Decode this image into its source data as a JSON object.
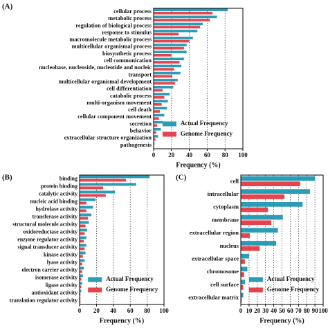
{
  "chart_data": [
    {
      "type": "bar",
      "orientation": "horizontal",
      "panel_label": "(A)",
      "x_label": "Frequency (%)",
      "xlim": [
        0,
        100
      ],
      "xticks": [
        0,
        20,
        40,
        60,
        80,
        100
      ],
      "grid": true,
      "legend": "lower right",
      "categories": [
        "cellular process",
        "metabolic process",
        "regulation of biological process",
        "response to stimulus",
        "macromolecule metabolic process",
        "multicellular organismal process",
        "biosynthetic process",
        "cell communication",
        "nucleobase, nucleoside, nucleotide and nucleic",
        "transport",
        "multicellular organismal development",
        "cell differentiation",
        "catabolic process",
        "multi-organism movement",
        "cell death",
        "cellular component movement",
        "secretion",
        "behavior",
        "extracellular structure organization",
        "pathogenesis"
      ],
      "series": [
        {
          "name": "Actual Frequency",
          "color": "#2b9cb6",
          "values": [
            83,
            71,
            55,
            49,
            44,
            37,
            37,
            34,
            31,
            30,
            27,
            22,
            18,
            16,
            15,
            12,
            10,
            8,
            5,
            1
          ]
        },
        {
          "name": "Genome Frequency",
          "color": "#e8434c",
          "values": [
            66,
            63,
            52,
            28,
            40,
            34,
            20,
            29,
            23,
            21,
            24,
            10,
            12,
            9,
            7,
            6,
            4,
            3,
            2,
            0.5
          ]
        }
      ]
    },
    {
      "type": "bar",
      "orientation": "horizontal",
      "panel_label": "(B)",
      "x_label": "Frequency (%)",
      "xlim": [
        0,
        100
      ],
      "xticks": [
        0,
        20,
        40,
        60,
        80,
        100
      ],
      "grid": true,
      "legend": "lower right",
      "categories": [
        "binding",
        "protein binding",
        "catalytic activity",
        "nucleic acid binding",
        "hydrolase activity",
        "transferase activity",
        "structural molecule activity",
        "oxidoreductase activity",
        "enzyme regulator activity",
        "signal transducer activity",
        "kinase activity",
        "lyase activity",
        "electron carrier activity",
        "isomerase activity",
        "ligase activity",
        "antioxidant activity",
        "translation regulator activity"
      ],
      "series": [
        {
          "name": "Actual Frequency",
          "color": "#2b9cb6",
          "values": [
            83,
            67,
            42,
            19,
            16,
            14,
            11,
            9,
            8,
            8,
            7,
            6,
            5,
            4,
            3,
            2,
            1
          ]
        },
        {
          "name": "Genome Frequency",
          "color": "#e8434c",
          "values": [
            55,
            28,
            31,
            8,
            8,
            10,
            7,
            6,
            5,
            6,
            4,
            3,
            3,
            2,
            2,
            1,
            1
          ]
        }
      ]
    },
    {
      "type": "bar",
      "orientation": "horizontal",
      "panel_label": "(C)",
      "x_label": "Frequency (%)",
      "xlim": [
        0,
        100
      ],
      "xticks": [
        0,
        10,
        20,
        30,
        40,
        50,
        60,
        70,
        80,
        90,
        100
      ],
      "grid": true,
      "legend": "lower right",
      "categories": [
        "cell",
        "intracellular",
        "cytoplasm",
        "membrane",
        "extracellular region",
        "nucleus",
        "extracellular space",
        "chromosome",
        "cell surface",
        "extracellular matrix"
      ],
      "series": [
        {
          "name": "Actual Frequency",
          "color": "#2b9cb6",
          "values": [
            90,
            84,
            75,
            51,
            45,
            43,
            10,
            8,
            5,
            3
          ]
        },
        {
          "name": "Genome Frequency",
          "color": "#e8434c",
          "values": [
            72,
            53,
            33,
            37,
            11,
            23,
            5,
            4,
            3,
            1
          ]
        }
      ]
    }
  ]
}
